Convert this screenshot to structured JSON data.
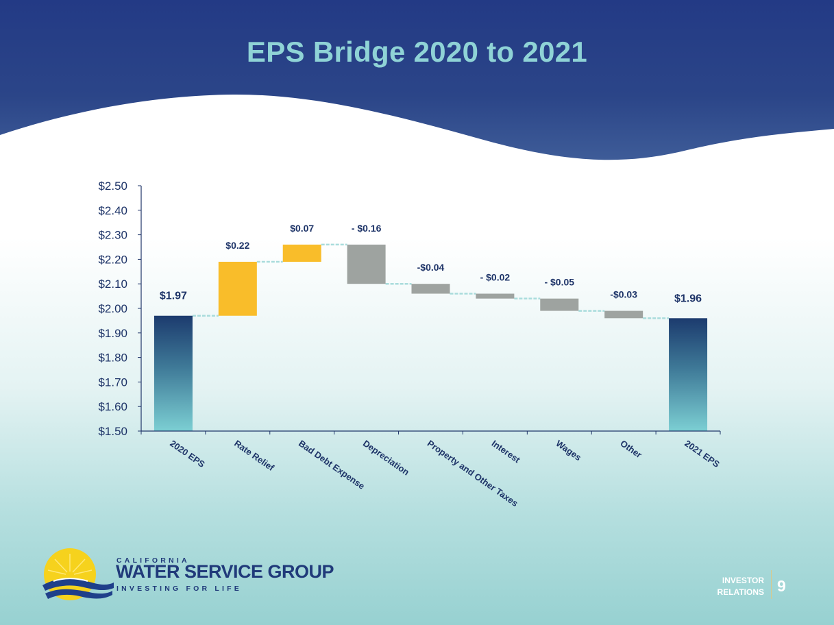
{
  "slide": {
    "title": "EPS Bridge 2020 to 2021",
    "logo": {
      "line1": "CALIFORNIA",
      "line2": "WATER SERVICE GROUP",
      "line3": "INVESTING FOR LIFE"
    },
    "footer": {
      "label_line1": "INVESTOR",
      "label_line2": "RELATIONS",
      "page_number": "9"
    }
  },
  "colors": {
    "header": "#243a82",
    "title": "#8fd3d6",
    "increase": "#f9bd2a",
    "decrease": "#9ea3a0",
    "total_top": "#1c3b6e",
    "total_bottom": "#7ccfd3",
    "connector": "#a9dcdc",
    "axis": "#1e3468",
    "category_label": "#1e3468",
    "value_label": "#1e3468"
  },
  "chart_data": {
    "type": "bar",
    "subtype": "waterfall",
    "ylim": [
      1.5,
      2.5
    ],
    "yticks": [
      1.5,
      1.6,
      1.7,
      1.8,
      1.9,
      2.0,
      2.1,
      2.2,
      2.3,
      2.4,
      2.5
    ],
    "ytick_labels": [
      "$1.50",
      "$1.60",
      "$1.70",
      "$1.80",
      "$1.90",
      "$2.00",
      "$2.10",
      "$2.20",
      "$2.30",
      "$2.40",
      "$2.50"
    ],
    "categories": [
      "2020 EPS",
      "Rate Relief",
      "Bad Debt Expense",
      "Depreciation",
      "Property and Other Taxes",
      "Interest",
      "Wages",
      "Other",
      "2021 EPS"
    ],
    "values": [
      1.97,
      0.22,
      0.07,
      -0.16,
      -0.04,
      -0.02,
      -0.05,
      -0.03,
      1.96
    ],
    "kinds": [
      "total",
      "increase",
      "increase",
      "decrease",
      "decrease",
      "decrease",
      "decrease",
      "decrease",
      "total"
    ],
    "data_labels": [
      "$1.97",
      "$0.22",
      "$0.07",
      "- $0.16",
      "-$0.04",
      "- $0.02",
      "- $0.05",
      "-$0.03",
      "$1.96"
    ],
    "grid": false,
    "legend": "none"
  }
}
